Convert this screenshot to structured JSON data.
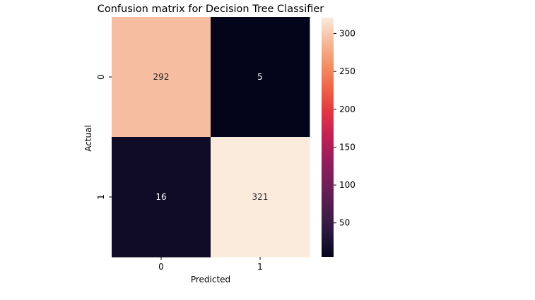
{
  "chart_data": {
    "type": "heatmap",
    "title": "Confusion matrix for Decision Tree Classifier",
    "xlabel": "Predicted",
    "ylabel": "Actual",
    "x_categories": [
      "0",
      "1"
    ],
    "y_categories": [
      "0",
      "1"
    ],
    "values": [
      [
        292,
        5
      ],
      [
        16,
        321
      ]
    ],
    "colormap": "rocket",
    "color_range": [
      5,
      321
    ],
    "colorbar_ticks": [
      50,
      100,
      150,
      200,
      250,
      300
    ],
    "colorbar_tick_labels": [
      "50",
      "100",
      "150",
      "200",
      "250",
      "300"
    ],
    "annotation_dark_color": "#262626",
    "annotation_light_color": "#ffffff"
  }
}
